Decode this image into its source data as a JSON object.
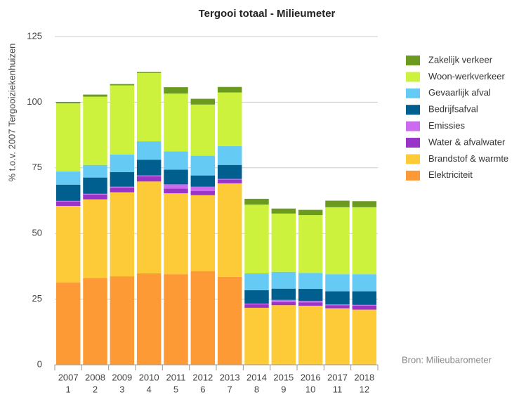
{
  "chart_data": {
    "type": "stacked_bar",
    "title": "Tergooi totaal - Milieumeter",
    "y_label": "% t.o.v. 2007 Tergooiziekenhuizen",
    "annotation": "Bron: Milieubarometer",
    "categories": [
      "2007",
      "2008",
      "2009",
      "2010",
      "2011",
      "2012",
      "2013",
      "2014",
      "2015",
      "2016",
      "2017",
      "2018"
    ],
    "category_numbers": [
      "1",
      "2",
      "3",
      "4",
      "5",
      "6",
      "7",
      "8",
      "9",
      "10",
      "11",
      "12"
    ],
    "series": [
      {
        "name": "Elektriciteit",
        "color": "#fd9a35",
        "values": [
          31.3,
          33,
          33.7,
          34.8,
          34.5,
          35.6,
          33.5,
          0,
          0,
          0,
          0,
          0
        ]
      },
      {
        "name": "Brandstof & warmte",
        "color": "#fdcb38",
        "values": [
          29.2,
          30,
          32,
          35,
          30.8,
          29,
          35.6,
          21.7,
          22.7,
          22.5,
          21.5,
          21
        ]
      },
      {
        "name": "Water & afvalwater",
        "color": "#9a34c8",
        "values": [
          1.6,
          1.8,
          1.8,
          2,
          1.8,
          1.6,
          1.4,
          1.3,
          1.2,
          1.2,
          1.2,
          1.5
        ]
      },
      {
        "name": "Emissies",
        "color": "#cd6bf0",
        "values": [
          0.3,
          0.3,
          0.3,
          0.3,
          1.6,
          1.6,
          0.3,
          0.3,
          0.8,
          0.6,
          0.3,
          0.3
        ]
      },
      {
        "name": "Bedrijfsafval",
        "color": "#005f8e",
        "values": [
          6.2,
          6.2,
          5.6,
          6,
          5.6,
          4.3,
          5.3,
          5.1,
          4.3,
          4.6,
          5,
          5.2
        ]
      },
      {
        "name": "Gevaarlijk afval",
        "color": "#66cbf4",
        "values": [
          5,
          4.8,
          6.7,
          7,
          7,
          7.5,
          7.2,
          6.4,
          6.4,
          6.1,
          6.5,
          6.5
        ]
      },
      {
        "name": "Woon-werkverkeer",
        "color": "#ccf23d",
        "values": [
          26,
          26,
          26.3,
          26,
          22,
          19.5,
          20.4,
          26.2,
          22.2,
          22,
          25.5,
          25.5
        ]
      },
      {
        "name": "Zakelijk verkeer",
        "color": "#6a9a1e",
        "values": [
          0.5,
          0.8,
          0.5,
          0.4,
          2.4,
          2.2,
          2.1,
          2.2,
          1.9,
          2,
          2.5,
          2.3
        ]
      }
    ],
    "ylim": [
      0,
      125
    ],
    "yticks": [
      0,
      25,
      50,
      75,
      100,
      125
    ],
    "grid": true
  }
}
